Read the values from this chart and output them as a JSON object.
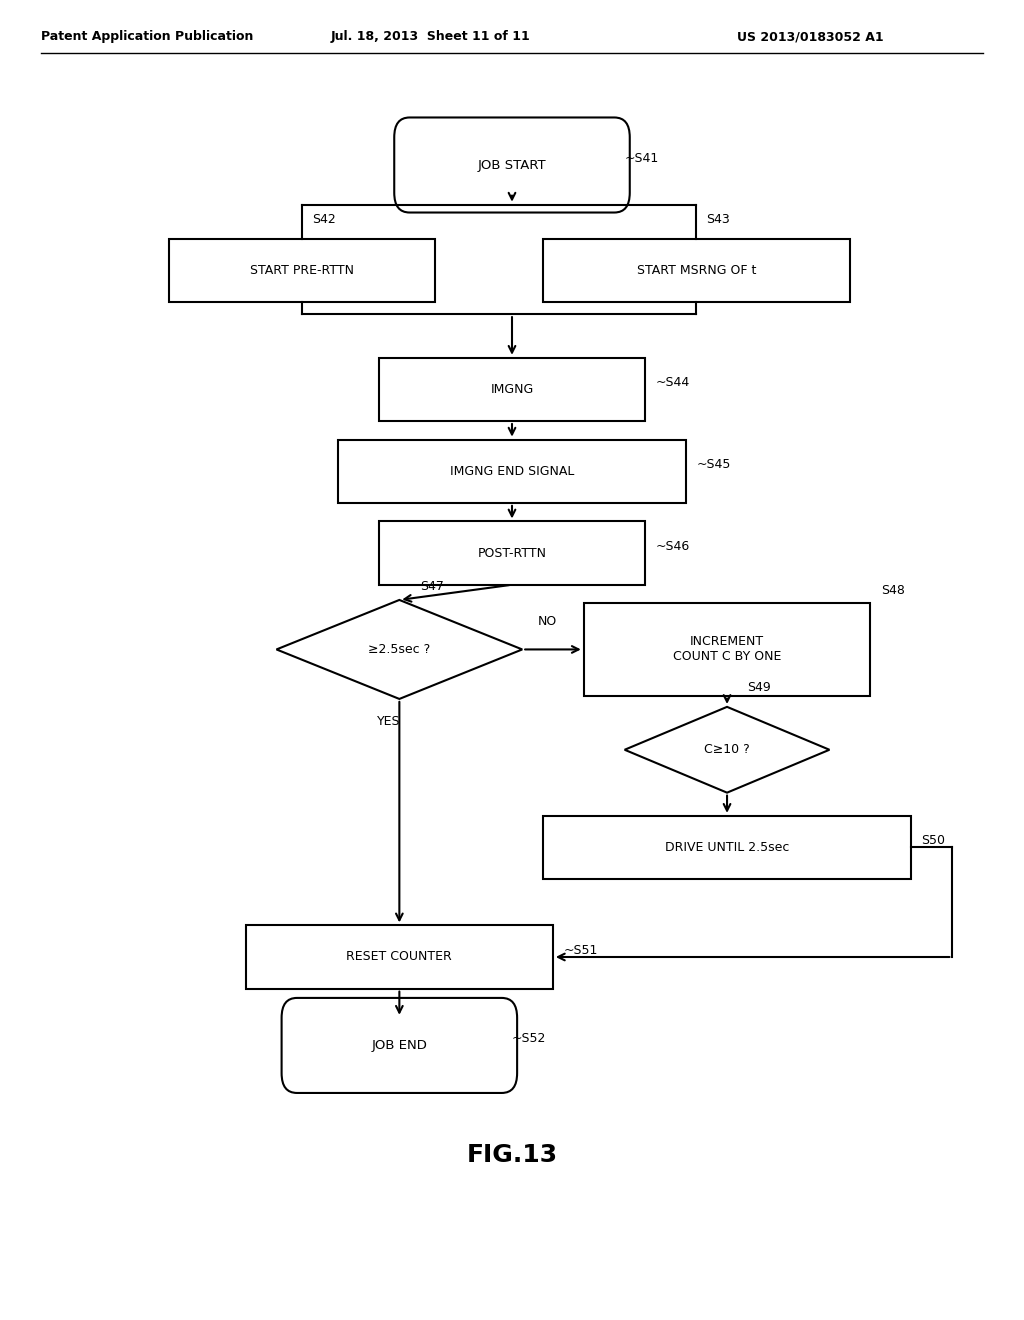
{
  "title": "FIG.13",
  "header_left": "Patent Application Publication",
  "header_mid": "Jul. 18, 2013  Sheet 11 of 11",
  "header_right": "US 2013/0183052 A1",
  "background": "#ffffff",
  "jstart_label": "JOB START",
  "jstart_tag": "~S41",
  "pre_label": "START PRE-RTTN",
  "pre_tag": "S42",
  "msrng_label": "START MSRNG OF t",
  "msrng_tag": "S43",
  "imgng_label": "IMGNG",
  "imgng_tag": "~S44",
  "imgnd_label": "IMGNG END SIGNAL",
  "imgnd_tag": "~S45",
  "postrt_label": "POST-RTTN",
  "postrt_tag": "~S46",
  "dia_label": "≥2.5sec ?",
  "dia_tag": "S47",
  "no_label": "NO",
  "yes_label": "YES",
  "inc_label": "INCREMENT\nCOUNT C BY ONE",
  "inc_tag": "S48",
  "c10_label": "C≥10 ?",
  "c10_tag": "S49",
  "drv_label": "DRIVE UNTIL 2.5sec",
  "drv_tag": "S50",
  "rst_label": "RESET COUNTER",
  "rst_tag": "~S51",
  "jend_label": "JOB END",
  "jend_tag": "~S52"
}
